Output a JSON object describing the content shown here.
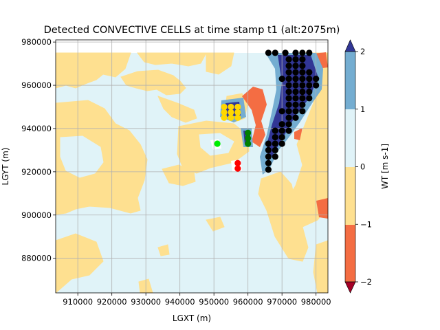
{
  "chart_data": {
    "type": "contour-scatter",
    "title": "Detected CONVECTIVE CELLS at time stamp t1 (alt:2075m)",
    "xlabel": "LGXT (m)",
    "ylabel": "LGYT (m)",
    "xlim": [
      903500,
      983500
    ],
    "ylim": [
      864000,
      981000
    ],
    "xticks": [
      910000,
      920000,
      930000,
      940000,
      950000,
      960000,
      970000,
      980000
    ],
    "xtick_labels": [
      "910000",
      "920000",
      "930000",
      "940000",
      "950000",
      "960000",
      "970000",
      "980000"
    ],
    "yticks": [
      880000,
      900000,
      920000,
      940000,
      960000,
      980000
    ],
    "ytick_labels": [
      "880000",
      "900000",
      "920000",
      "940000",
      "960000",
      "980000"
    ],
    "grid": true,
    "colorbar": {
      "label": "WT [m s-1]",
      "levels": [
        -2,
        -1,
        0,
        1,
        2
      ],
      "tick_labels": [
        "−2",
        "−1",
        "0",
        "1",
        "2"
      ],
      "colors": {
        "below": "#a50026",
        "m2_m1": "#f46d43",
        "m1_0": "#fee090",
        "0_1": "#e0f3f8",
        "1_2": "#74add1",
        "above": "#313695"
      }
    },
    "field_background": "#e0f3f8",
    "cells": [
      {
        "color": "#000000",
        "points": [
          [
            966000,
            975000
          ],
          [
            968000,
            975000
          ],
          [
            971000,
            975000
          ],
          [
            974000,
            975000
          ],
          [
            976000,
            975000
          ],
          [
            978000,
            975000
          ],
          [
            972000,
            972000
          ],
          [
            974000,
            972000
          ],
          [
            976000,
            972000
          ],
          [
            972000,
            969000
          ],
          [
            974000,
            969000
          ],
          [
            976000,
            969000
          ],
          [
            972000,
            966000
          ],
          [
            974000,
            966000
          ],
          [
            976000,
            966000
          ],
          [
            978000,
            966000
          ],
          [
            970000,
            963000
          ],
          [
            972000,
            963000
          ],
          [
            974000,
            963000
          ],
          [
            976000,
            963000
          ],
          [
            978000,
            963000
          ],
          [
            980000,
            963000
          ],
          [
            972000,
            960000
          ],
          [
            974000,
            960000
          ],
          [
            976000,
            960000
          ],
          [
            978000,
            960000
          ],
          [
            980000,
            960000
          ],
          [
            972000,
            957000
          ],
          [
            974000,
            957000
          ],
          [
            976000,
            957000
          ],
          [
            978000,
            957000
          ],
          [
            972000,
            954000
          ],
          [
            974000,
            954000
          ],
          [
            976000,
            954000
          ],
          [
            978000,
            954000
          ],
          [
            972000,
            951000
          ],
          [
            974000,
            951000
          ],
          [
            976000,
            951000
          ],
          [
            970000,
            948000
          ],
          [
            972000,
            948000
          ],
          [
            974000,
            948000
          ],
          [
            976000,
            948000
          ],
          [
            972000,
            945000
          ],
          [
            974000,
            945000
          ],
          [
            970000,
            942000
          ],
          [
            972000,
            942000
          ],
          [
            968000,
            939000
          ],
          [
            970000,
            939000
          ],
          [
            972000,
            939000
          ],
          [
            968000,
            936000
          ],
          [
            970000,
            936000
          ],
          [
            966000,
            933000
          ],
          [
            968000,
            933000
          ],
          [
            970000,
            933000
          ],
          [
            966000,
            930000
          ],
          [
            968000,
            930000
          ],
          [
            966000,
            927000
          ],
          [
            968000,
            927000
          ],
          [
            966000,
            924000
          ],
          [
            966000,
            921000
          ]
        ]
      },
      {
        "color": "#ffd700",
        "points": [
          [
            953000,
            950000
          ],
          [
            955000,
            950000
          ],
          [
            957000,
            950000
          ],
          [
            953000,
            947500
          ],
          [
            955000,
            947500
          ],
          [
            957000,
            947500
          ],
          [
            953000,
            945000
          ],
          [
            955000,
            945000
          ],
          [
            957000,
            945000
          ]
        ]
      },
      {
        "color": "#00ee00",
        "points": [
          [
            951000,
            933000
          ]
        ]
      },
      {
        "color": "#008000",
        "points": [
          [
            960000,
            938000
          ],
          [
            960000,
            935500
          ],
          [
            960000,
            933000
          ]
        ]
      },
      {
        "color": "#ff0000",
        "points": [
          [
            957000,
            924000
          ],
          [
            957000,
            921500
          ]
        ]
      }
    ]
  }
}
